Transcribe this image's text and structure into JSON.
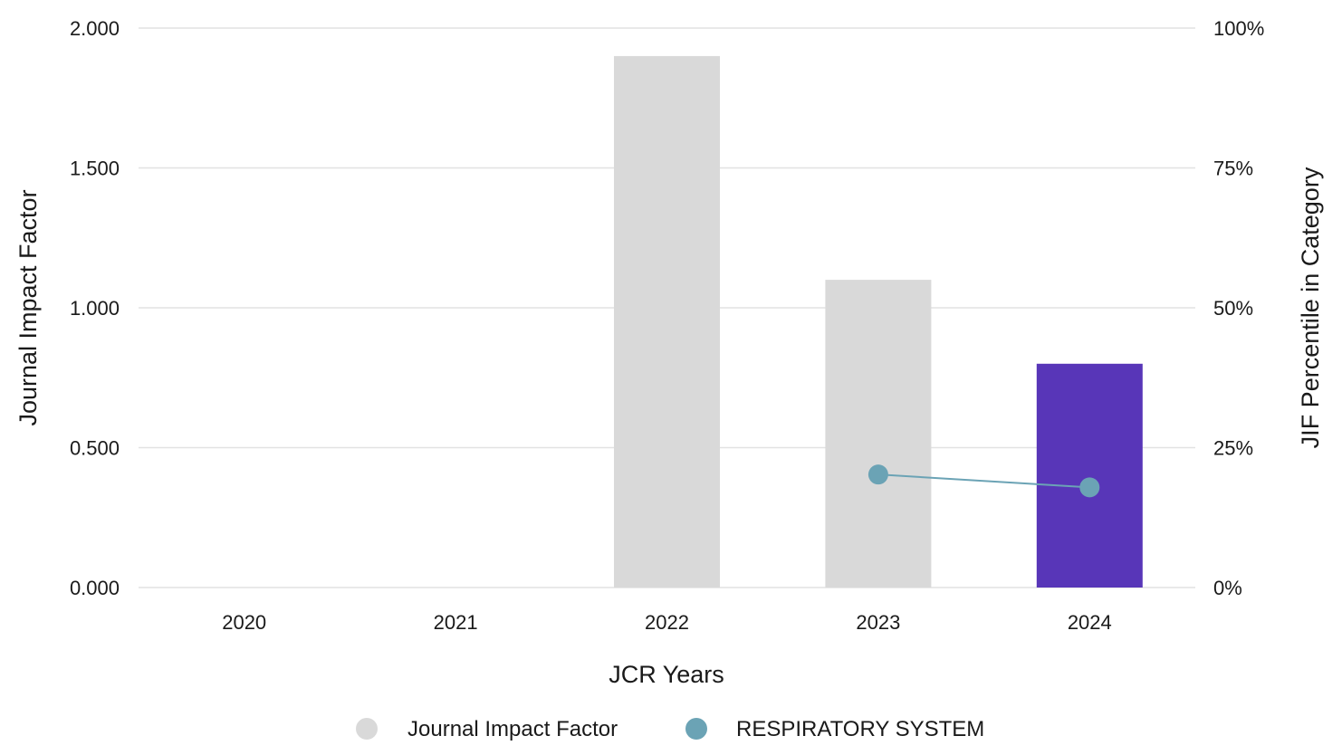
{
  "chart_data": {
    "type": "bar",
    "x_axis": {
      "label": "JCR Years",
      "categories": [
        "2020",
        "2021",
        "2022",
        "2023",
        "2024"
      ]
    },
    "y_axis_left": {
      "label": "Journal Impact Factor",
      "ylim": [
        0,
        2
      ],
      "ticks": [
        0,
        0.5,
        1,
        1.5,
        2
      ],
      "tick_labels": [
        "0.000",
        "0.500",
        "1.000",
        "1.500",
        "2.000"
      ]
    },
    "y_axis_right": {
      "label": "JIF Percentile in Category",
      "ylim": [
        0,
        100
      ],
      "ticks": [
        0,
        25,
        50,
        75,
        100
      ],
      "tick_labels": [
        "0%",
        "25%",
        "50%",
        "75%",
        "100%"
      ]
    },
    "series": [
      {
        "name": "Journal Impact Factor",
        "type": "bar",
        "axis": "left",
        "values": [
          null,
          null,
          1.9,
          1.1,
          0.8
        ],
        "colors": [
          "#d9d9d9",
          "#d9d9d9",
          "#d9d9d9",
          "#d9d9d9",
          "#5836b8"
        ]
      },
      {
        "name": "RESPIRATORY SYSTEM",
        "type": "line",
        "axis": "right",
        "values": [
          null,
          null,
          null,
          20.2,
          17.9
        ],
        "color": "#6ba3b5"
      }
    ],
    "grid": true,
    "legend": {
      "position": "bottom",
      "items": [
        {
          "label": "Journal Impact Factor",
          "color": "#d9d9d9"
        },
        {
          "label": "RESPIRATORY SYSTEM",
          "color": "#6ba3b5"
        }
      ]
    }
  }
}
